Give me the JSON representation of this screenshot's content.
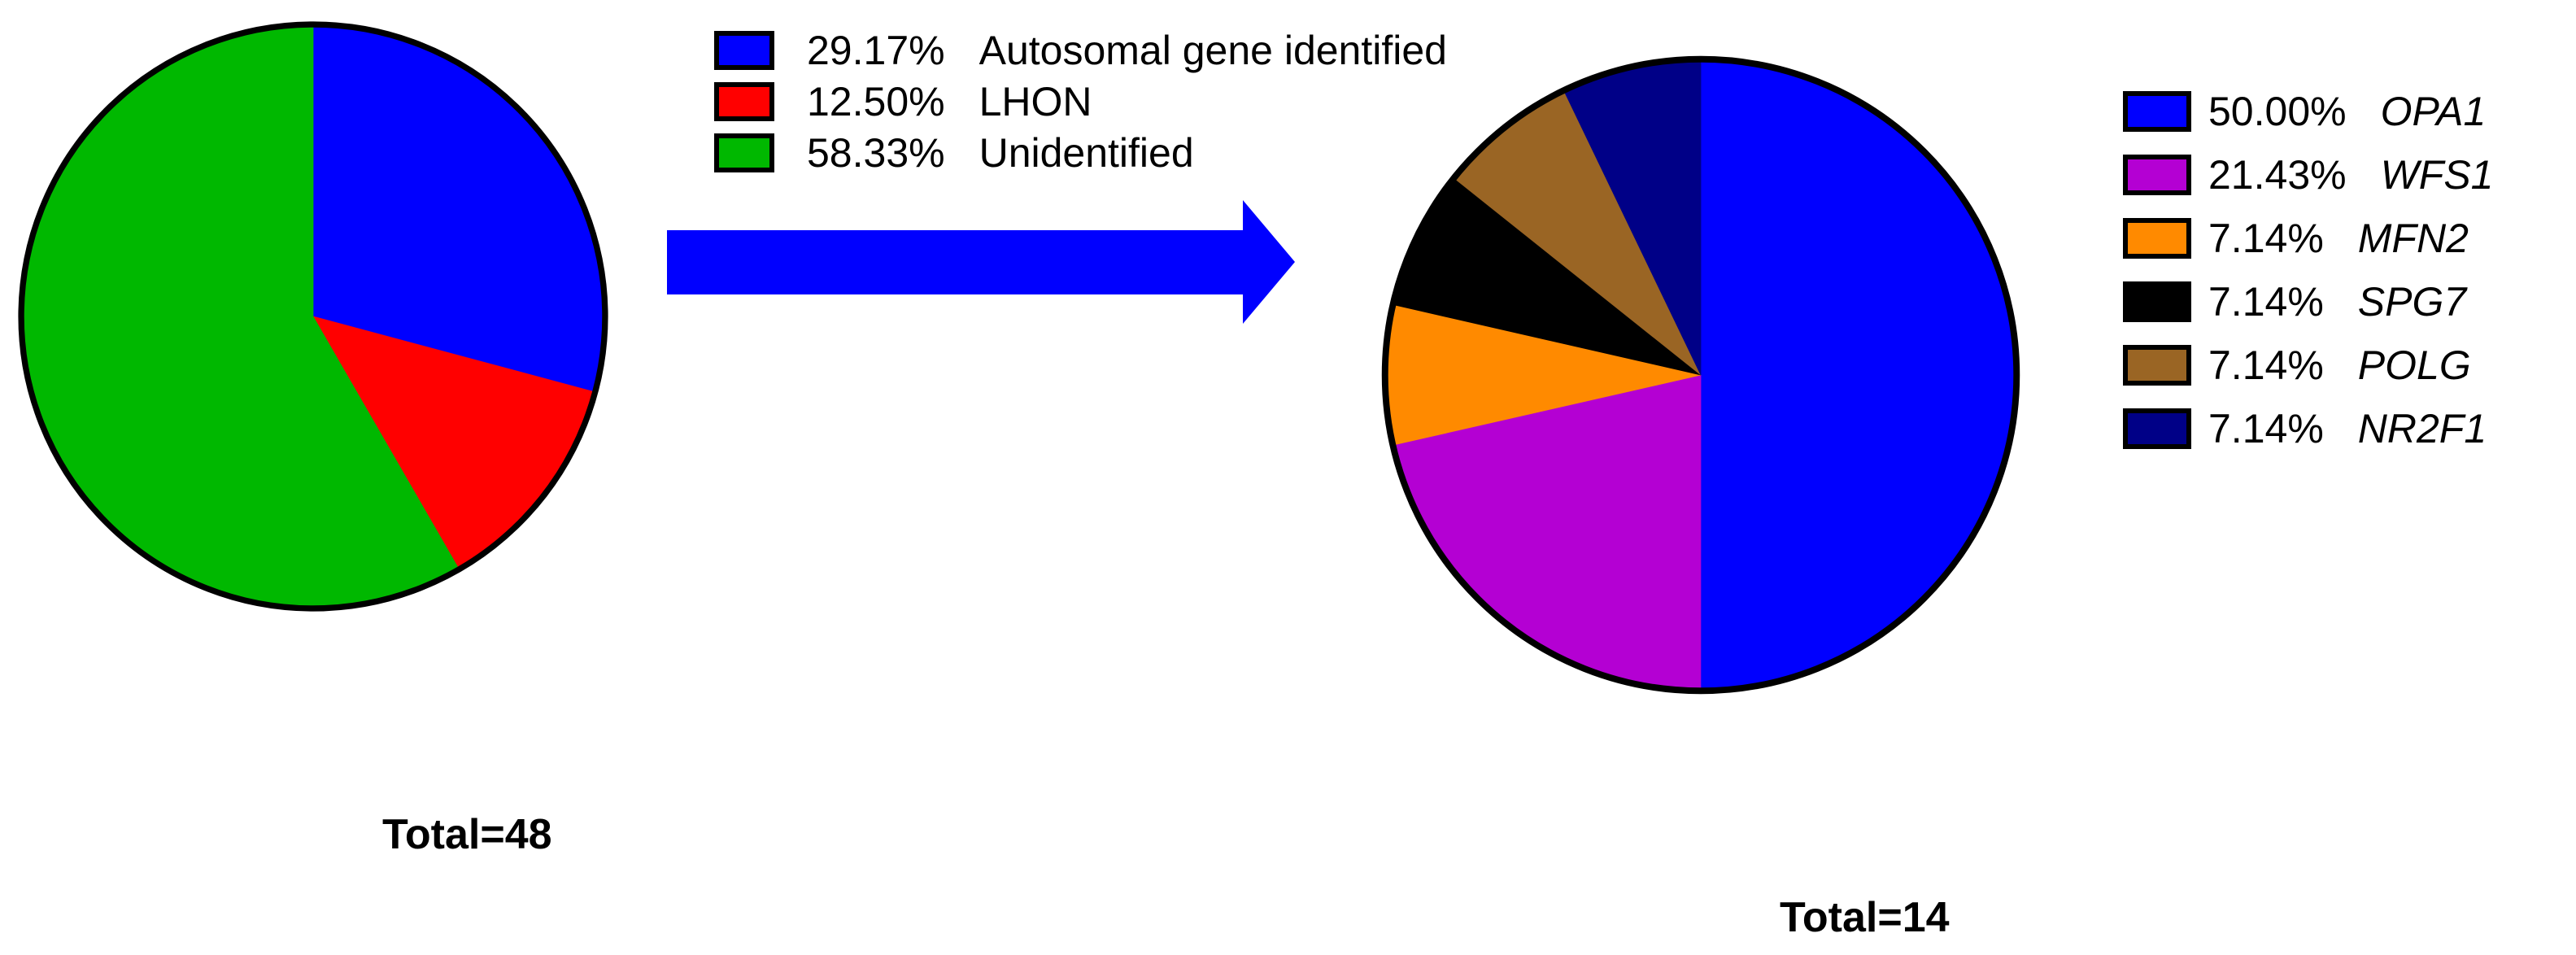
{
  "figure": {
    "background_color": "#FFFFFF",
    "arrow_color": "#0000FF",
    "text_color": "#000000",
    "pie_outline_color": "#000000"
  },
  "totals": {
    "left": "Total=48",
    "right": "Total=14"
  },
  "chart_data": [
    {
      "type": "pie",
      "title": "",
      "total_label": "Total=48",
      "total": 48,
      "start_angle": "12 o'clock",
      "direction": "clockwise",
      "legend_position": "right-of-chart",
      "slices": [
        {
          "label": "Autosomal gene identified",
          "percent": 29.17,
          "percent_label": "29.17%",
          "color": "#0000FF",
          "italic": false
        },
        {
          "label": "LHON",
          "percent": 12.5,
          "percent_label": "12.50%",
          "color": "#FF0000",
          "italic": false
        },
        {
          "label": "Unidentified",
          "percent": 58.33,
          "percent_label": "58.33%",
          "color": "#00B800",
          "italic": false
        }
      ]
    },
    {
      "type": "pie",
      "title": "",
      "total_label": "Total=14",
      "total": 14,
      "start_angle": "12 o'clock",
      "direction": "clockwise",
      "legend_position": "right-of-chart",
      "slices": [
        {
          "label": "OPA1",
          "percent": 50.0,
          "percent_label": "50.00%",
          "color": "#0000FF",
          "italic": true
        },
        {
          "label": "WFS1",
          "percent": 21.43,
          "percent_label": "21.43%",
          "color": "#B400D3",
          "italic": true
        },
        {
          "label": "MFN2",
          "percent": 7.14,
          "percent_label": "7.14%",
          "color": "#FF8A00",
          "italic": true
        },
        {
          "label": "SPG7",
          "percent": 7.14,
          "percent_label": "7.14%",
          "color": "#000000",
          "italic": true
        },
        {
          "label": "POLG",
          "percent": 7.14,
          "percent_label": "7.14%",
          "color": "#9A6524",
          "italic": true
        },
        {
          "label": "NR2F1",
          "percent": 7.14,
          "percent_label": "7.14%",
          "color": "#000087",
          "italic": true
        }
      ]
    }
  ]
}
